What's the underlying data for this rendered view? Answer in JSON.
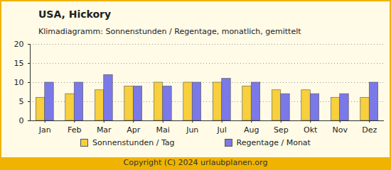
{
  "chart_data": {
    "type": "bar",
    "title": "USA, Hickory",
    "subtitle": "Klimadiagramm: Sonnenstunden / Regentage, monatlich, gemittelt",
    "caption": "Copyright (C) 2024 urlaubplanen.org",
    "categories": [
      "Jan",
      "Feb",
      "Mar",
      "Apr",
      "Mai",
      "Jun",
      "Jul",
      "Aug",
      "Sep",
      "Okt",
      "Nov",
      "Dez"
    ],
    "series": [
      {
        "name": "Sonnenstunden / Tag",
        "color": "#f8cf3c",
        "values": [
          6,
          7,
          8,
          9,
          10,
          10,
          10,
          9,
          8,
          8,
          6,
          6
        ]
      },
      {
        "name": "Regentage / Monat",
        "color": "#7b78e8",
        "values": [
          10,
          10,
          12,
          9,
          9,
          10,
          11,
          10,
          7,
          7,
          7,
          10
        ]
      }
    ],
    "ylim": [
      0,
      20
    ],
    "yticks": [
      0,
      5,
      10,
      15,
      20
    ],
    "grid": true,
    "legend": "bottom"
  }
}
